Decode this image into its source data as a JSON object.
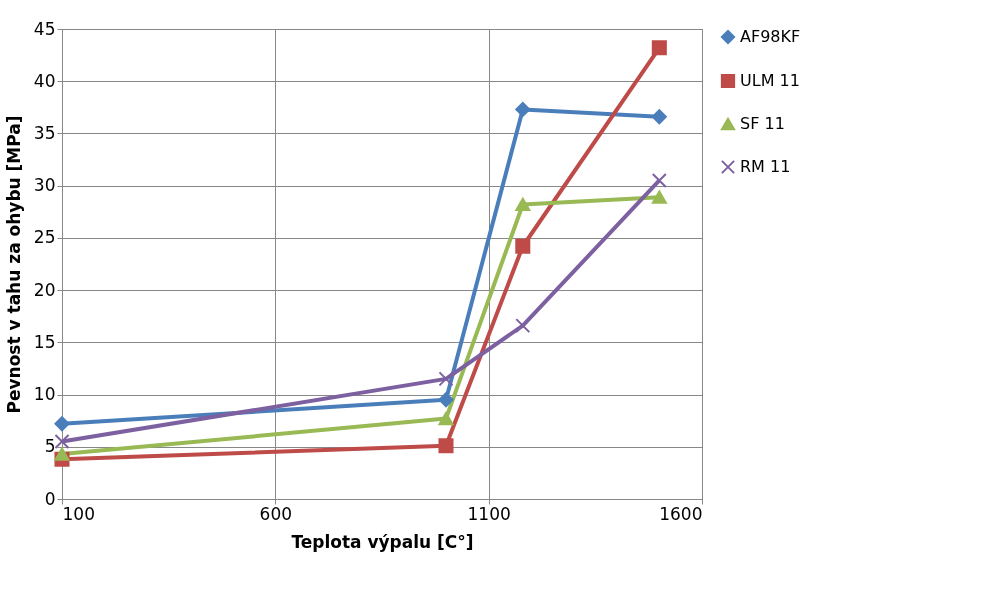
{
  "chart_data": {
    "type": "line",
    "xlabel": "Teplota výpalu [C°]",
    "ylabel": "Pevnost v tahu za ohybu [MPa]",
    "x": [
      100,
      1000,
      1180,
      1500
    ],
    "series": [
      {
        "name": "AF98KF",
        "color": "#4a7ebb",
        "marker": "diamond",
        "values": [
          7.2,
          9.5,
          37.3,
          36.6
        ]
      },
      {
        "name": "ULM 11",
        "color": "#be4b48",
        "marker": "square",
        "values": [
          3.8,
          5.1,
          24.2,
          43.2
        ]
      },
      {
        "name": "SF 11",
        "color": "#98b954",
        "marker": "triangle",
        "values": [
          4.3,
          7.7,
          28.2,
          28.9
        ]
      },
      {
        "name": "RM 11",
        "color": "#7d60a0",
        "marker": "cross",
        "values": [
          5.5,
          11.5,
          16.6,
          30.5
        ]
      }
    ],
    "xlim": [
      100,
      1600
    ],
    "xticks": [
      100,
      600,
      1100,
      1600
    ],
    "ylim": [
      0,
      45
    ],
    "yticks": [
      0,
      5,
      10,
      15,
      20,
      25,
      30,
      35,
      40,
      45
    ],
    "grid": true,
    "legend": "right",
    "line_style": "solid"
  }
}
